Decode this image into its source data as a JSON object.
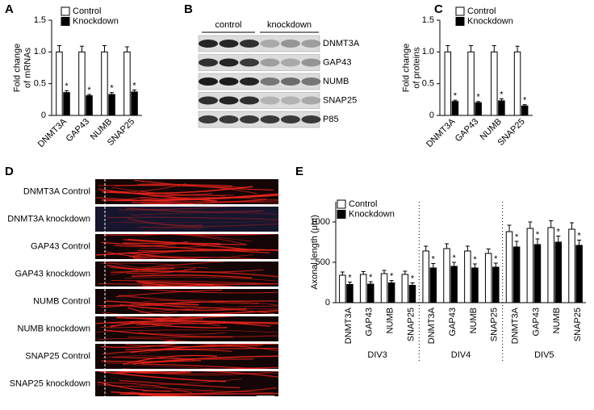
{
  "panels": [
    "A",
    "B",
    "C",
    "D",
    "E"
  ],
  "blot": {
    "group_labels": [
      "control",
      "knockdown"
    ],
    "rows": [
      "DNMT3A",
      "GAP43",
      "NUMB",
      "SNAP25",
      "P85"
    ]
  },
  "images": {
    "labels": [
      "DNMT3A Control",
      "DNMT3A knockdown",
      "GAP43 Control",
      "GAP43 knockdown",
      "NUMB Control",
      "NUMB knockdown",
      "SNAP25 Control",
      "SNAP25 knockdown"
    ]
  },
  "chart_data": [
    {
      "type": "bar",
      "ylabel": [
        "Fold change",
        "of mRNAs"
      ],
      "categories": [
        "DNMT3A",
        "GAP43",
        "NUMB",
        "SNAP25"
      ],
      "series": [
        {
          "name": "Control",
          "color": "#ffffff",
          "values": [
            1,
            1,
            1,
            1
          ],
          "errors": [
            0.1,
            0.09,
            0.1,
            0.08
          ]
        },
        {
          "name": "Knockdown",
          "color": "#000000",
          "values": [
            0.36,
            0.31,
            0.33,
            0.37
          ],
          "errors": [
            0.03,
            0.02,
            0.03,
            0.03
          ],
          "significance": [
            "*",
            "*",
            "*",
            "*"
          ]
        }
      ],
      "ylim": [
        0,
        1.5
      ],
      "yticks": [
        0,
        0.5,
        {
          "value": 1,
          "label": "1.0"
        },
        1.5
      ]
    },
    {
      "type": "bar",
      "ylabel": [
        "Fold change",
        "of proteins"
      ],
      "categories": [
        "DNMT3A",
        "GAP43",
        "NUMB",
        "SNAP25"
      ],
      "series": [
        {
          "name": "Control",
          "color": "#ffffff",
          "values": [
            1,
            1,
            1,
            1
          ],
          "errors": [
            0.1,
            0.1,
            0.1,
            0.09
          ]
        },
        {
          "name": "Knockdown",
          "color": "#000000",
          "values": [
            0.22,
            0.2,
            0.23,
            0.15
          ],
          "errors": [
            0.02,
            0.02,
            0.03,
            0.02
          ],
          "significance": [
            "*",
            "*",
            "*",
            "*"
          ]
        }
      ],
      "ylim": [
        0,
        1.5
      ],
      "yticks": [
        0,
        0.5,
        {
          "value": 1,
          "label": "1.0"
        },
        1.5
      ]
    },
    {
      "type": "bar",
      "ylabel": [
        "Axonal length (μm)"
      ],
      "categories": [
        "DNMT3A",
        "GAP43",
        "NUMB",
        "SNAP25",
        "DNMT3A",
        "GAP43",
        "NUMB",
        "SNAP25",
        "DNMT3A",
        "GAP43",
        "NUMB",
        "SNAP25"
      ],
      "group_labels": [
        "DIV3",
        "DIV4",
        "DIV5"
      ],
      "series": [
        {
          "name": "Control",
          "color": "#ffffff",
          "values": [
            340,
            350,
            360,
            350,
            640,
            670,
            640,
            610,
            880,
            920,
            930,
            910
          ],
          "errors": [
            40,
            35,
            40,
            40,
            60,
            60,
            60,
            55,
            80,
            80,
            85,
            80
          ]
        },
        {
          "name": "Knockdown",
          "color": "#000000",
          "values": [
            225,
            230,
            245,
            215,
            430,
            450,
            430,
            440,
            690,
            720,
            750,
            710
          ],
          "errors": [
            30,
            30,
            30,
            30,
            55,
            50,
            50,
            50,
            70,
            70,
            75,
            65
          ],
          "significance": [
            "*",
            "*",
            "*",
            "*",
            "*",
            "*",
            "*",
            "*",
            "*",
            "*",
            "*",
            "*"
          ]
        }
      ],
      "ylim": [
        0,
        1250
      ],
      "yticks": [
        0,
        500,
        1000
      ]
    }
  ]
}
